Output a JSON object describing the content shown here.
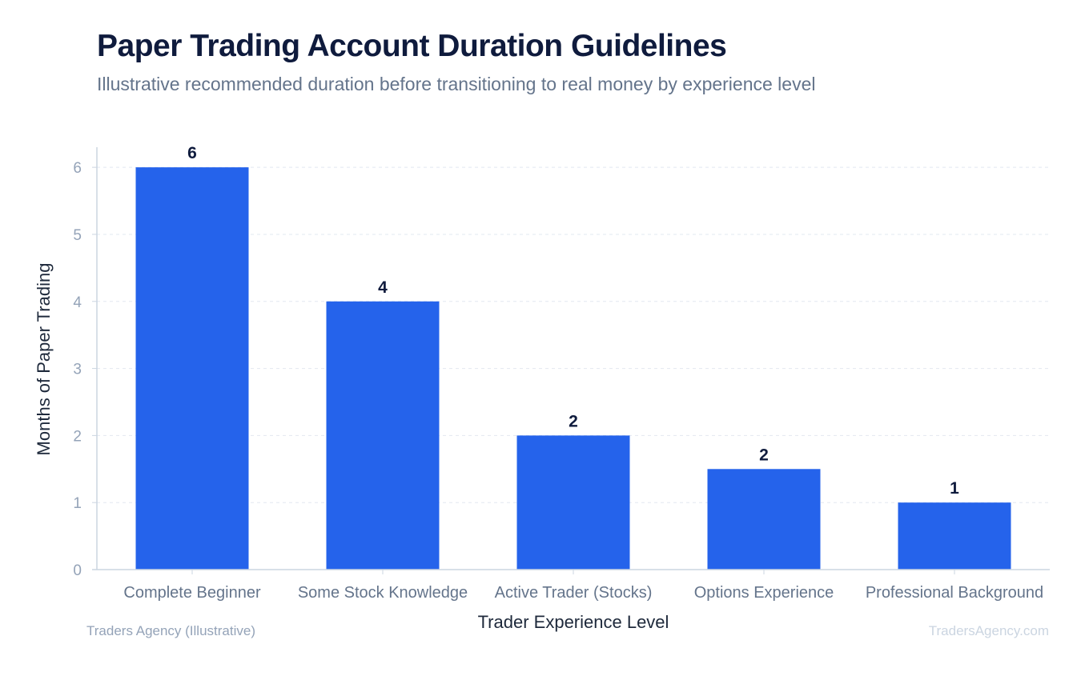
{
  "header": {
    "title": "Paper Trading Account Duration Guidelines",
    "subtitle": "Illustrative recommended duration before transitioning to real money by experience level"
  },
  "footer": {
    "source": "Traders Agency (Illustrative)",
    "brand": "TradersAgency.com"
  },
  "colors": {
    "bar": "#2563eb",
    "grid": "#e2e8f0",
    "axis": "#cbd5e1"
  },
  "chart_data": {
    "type": "bar",
    "title": "Paper Trading Account Duration Guidelines",
    "subtitle": "Illustrative recommended duration before transitioning to real money by experience level",
    "xlabel": "Trader Experience Level",
    "ylabel": "Months of Paper Trading",
    "categories": [
      "Complete Beginner",
      "Some Stock Knowledge",
      "Active Trader (Stocks)",
      "Options Experience",
      "Professional Background"
    ],
    "values": [
      6,
      4,
      2,
      1.5,
      1
    ],
    "value_labels": [
      "6",
      "4",
      "2",
      "2",
      "1"
    ],
    "yticks": [
      0,
      1,
      2,
      3,
      4,
      5,
      6
    ],
    "ylim": [
      0,
      6.3
    ],
    "grid": true,
    "legend": "none"
  }
}
